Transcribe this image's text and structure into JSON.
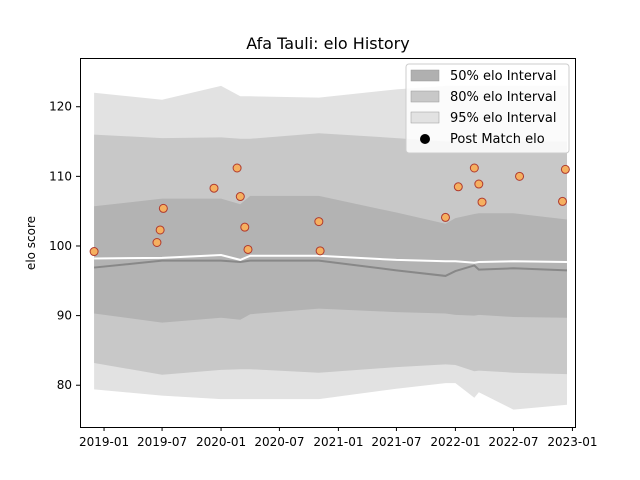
{
  "chart_data": {
    "type": "area",
    "title": "Afa Tauli: elo History",
    "xlabel": "",
    "ylabel": "elo score",
    "xlim": [
      "2018-10-18",
      "2023-01-09"
    ],
    "ylim": [
      74.0,
      127.0
    ],
    "x_ticks": [
      "2019-01",
      "2019-07",
      "2020-01",
      "2020-07",
      "2021-01",
      "2021-07",
      "2022-01",
      "2022-07",
      "2023-01"
    ],
    "y_ticks": [
      80,
      90,
      100,
      110,
      120
    ],
    "grid": false,
    "legend_position": "top-right",
    "legend": [
      {
        "label": "50% elo Interval",
        "kind": "patch",
        "color": "#b0b0b0"
      },
      {
        "label": "80% elo Interval",
        "kind": "patch",
        "color": "#c8c8c8"
      },
      {
        "label": "95% elo Interval",
        "kind": "patch",
        "color": "#e2e2e2"
      },
      {
        "label": "Post Match elo",
        "kind": "marker",
        "color": "#000000"
      }
    ],
    "bands": {
      "x": [
        "2018-12-01",
        "2019-07-01",
        "2020-01-01",
        "2020-03-01",
        "2020-04-01",
        "2020-11-01",
        "2021-07-01",
        "2021-12-01",
        "2022-01-01",
        "2022-03-01",
        "2022-03-15",
        "2022-07-01",
        "2022-12-15"
      ],
      "p95_upper": [
        122.0,
        121.0,
        123.0,
        121.5,
        121.5,
        121.3,
        122.5,
        123.0,
        123.0,
        123.0,
        123.0,
        123.0,
        123.0
      ],
      "p95_lower": [
        79.4,
        78.5,
        78.0,
        78.0,
        78.0,
        78.0,
        79.5,
        80.3,
        80.3,
        78.2,
        79.0,
        76.5,
        77.2
      ],
      "p80_upper": [
        116.0,
        115.5,
        115.6,
        115.4,
        115.4,
        116.2,
        115.5,
        115.0,
        115.0,
        115.0,
        115.0,
        115.0,
        115.0
      ],
      "p80_lower": [
        83.2,
        81.5,
        82.2,
        82.3,
        82.3,
        81.8,
        82.6,
        83.0,
        82.9,
        82.0,
        82.1,
        81.8,
        81.6
      ],
      "p50_upper": [
        105.7,
        106.8,
        106.8,
        106.0,
        107.2,
        107.2,
        104.8,
        103.2,
        104.0,
        104.6,
        104.7,
        104.7,
        103.8
      ],
      "p50_lower": [
        90.3,
        89.0,
        89.7,
        89.4,
        90.2,
        91.0,
        90.5,
        90.3,
        90.1,
        90.0,
        90.1,
        89.8,
        89.7
      ],
      "median": [
        96.9,
        97.9,
        97.9,
        97.7,
        97.9,
        97.9,
        96.5,
        95.7,
        96.4,
        97.2,
        96.6,
        96.8,
        96.5
      ],
      "mean": [
        98.2,
        98.3,
        98.7,
        98.0,
        98.6,
        98.6,
        98.0,
        97.8,
        97.8,
        97.6,
        97.7,
        97.8,
        97.7
      ]
    },
    "points": {
      "name": "Post Match elo",
      "x": [
        "2018-12-01",
        "2019-06-15",
        "2019-06-25",
        "2019-07-05",
        "2019-12-10",
        "2020-02-20",
        "2020-03-01",
        "2020-03-15",
        "2020-03-25",
        "2020-11-01",
        "2020-11-05",
        "2021-12-01",
        "2022-01-10",
        "2022-03-01",
        "2022-03-15",
        "2022-03-25",
        "2022-07-20",
        "2022-12-01",
        "2022-12-10"
      ],
      "y": [
        99.2,
        100.5,
        102.3,
        105.4,
        108.3,
        111.2,
        107.1,
        102.7,
        99.5,
        103.5,
        99.3,
        104.1,
        108.5,
        111.2,
        108.9,
        106.3,
        110.0,
        106.4,
        111.0
      ]
    },
    "colors": {
      "band95": "#e2e2e2",
      "band80": "#c8c8c8",
      "band50": "#b3b3b3",
      "median_line": "#888888",
      "mean_line": "#ffffff",
      "point_fill": "#f5b060",
      "point_edge": "#b03a2e"
    }
  }
}
